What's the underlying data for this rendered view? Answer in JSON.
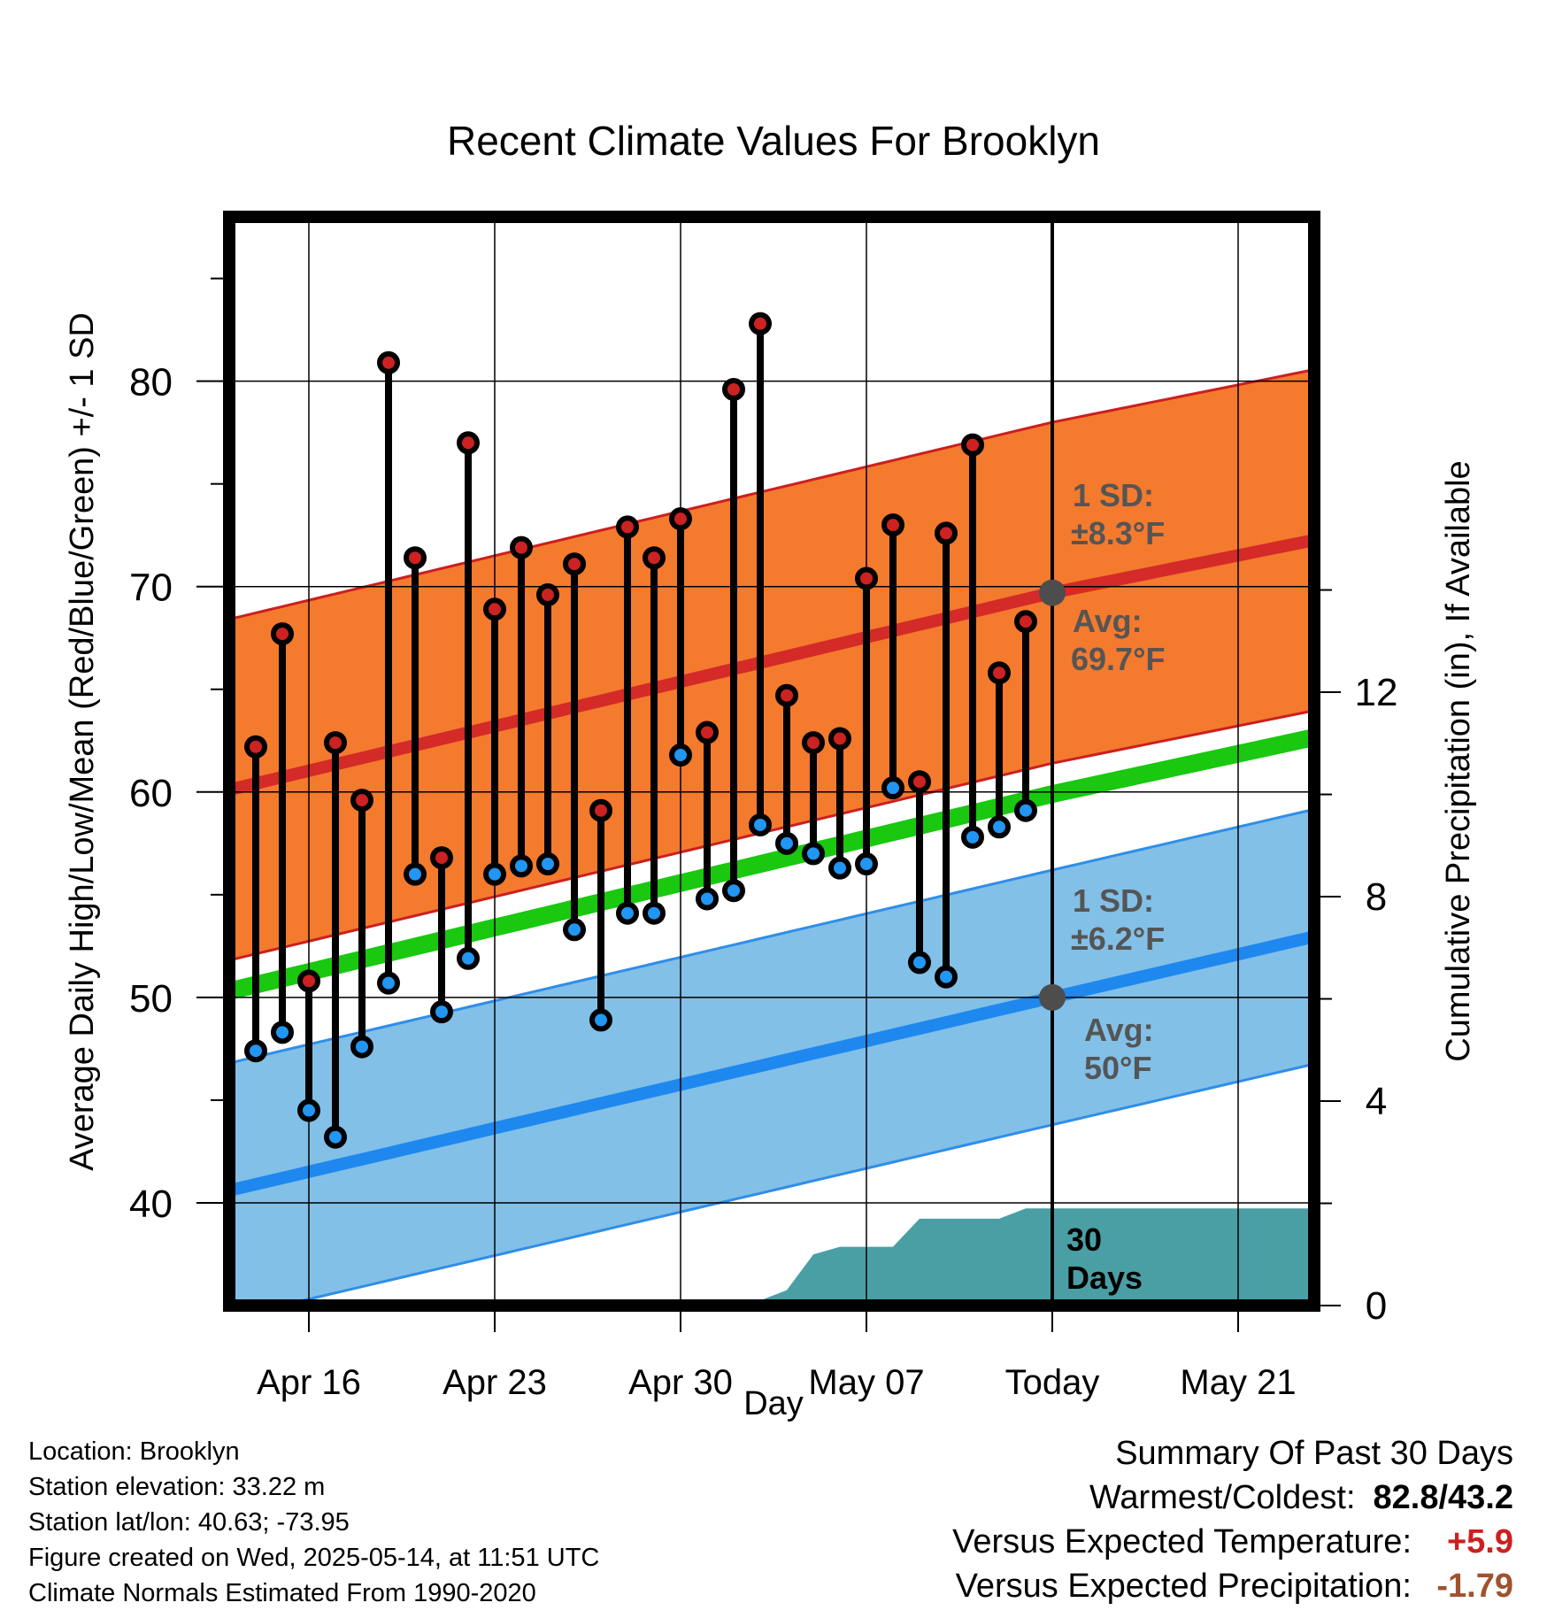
{
  "chart_data": {
    "type": "line",
    "title": "Recent Climate Values For Brooklyn",
    "xlabel": "Day",
    "ylabel": "Average Daily High/Low/Mean (Red/Blue/Green) +/- 1 SD",
    "y2label": "Cumulative Precipitation (in), If Available",
    "ylim": [
      35,
      88
    ],
    "y2lim": [
      0,
      21.3
    ],
    "y_ticks": [
      "40",
      "50",
      "60",
      "70",
      "80"
    ],
    "y2_ticks": [
      "0",
      "4",
      "8",
      "12"
    ],
    "x_range": [
      "2025-04-12",
      "2025-05-25"
    ],
    "x_ticks": [
      {
        "date": "2025-04-16",
        "label": "Apr 16"
      },
      {
        "date": "2025-04-23",
        "label": "Apr 23"
      },
      {
        "date": "2025-04-30",
        "label": "Apr 30"
      },
      {
        "date": "2025-05-07",
        "label": "May 07"
      },
      {
        "date": "2025-05-14",
        "label": "Today"
      },
      {
        "date": "2025-05-21",
        "label": "May 21"
      }
    ],
    "grid": true,
    "colors": {
      "high_band": "#f47a2e",
      "high_band_edge": "#cc1f1f",
      "high_avg": "#d42a28",
      "low_band": "#82c0e8",
      "low_band_edge": "#2f8ee8",
      "low_avg": "#1e88ee",
      "mean": "#19c80f",
      "precip": "#4a9fa5",
      "high_dot": "#cc2222",
      "low_dot": "#2196f3",
      "today_dot": "#4d4d4d",
      "annotation": "#555555",
      "plus": "#cc2020",
      "minus": "#a0522d"
    },
    "normals": {
      "dates": [
        "2025-04-12",
        "2025-05-14",
        "2025-05-24"
      ],
      "high_avg": [
        59.8,
        69.7,
        72.3
      ],
      "high_sd": 8.3,
      "low_avg": [
        40.3,
        50.0,
        53.0
      ],
      "low_sd": 6.2,
      "mean": [
        50.0,
        59.9,
        62.7
      ]
    },
    "series": [
      {
        "name": "High",
        "x": [
          "2025-04-14",
          "2025-04-15",
          "2025-04-16",
          "2025-04-17",
          "2025-04-18",
          "2025-04-19",
          "2025-04-20",
          "2025-04-21",
          "2025-04-22",
          "2025-04-23",
          "2025-04-24",
          "2025-04-25",
          "2025-04-26",
          "2025-04-27",
          "2025-04-28",
          "2025-04-29",
          "2025-04-30",
          "2025-05-01",
          "2025-05-02",
          "2025-05-03",
          "2025-05-04",
          "2025-05-05",
          "2025-05-06",
          "2025-05-07",
          "2025-05-08",
          "2025-05-09",
          "2025-05-10",
          "2025-05-11",
          "2025-05-12",
          "2025-05-13"
        ],
        "values": [
          62.2,
          67.7,
          50.8,
          62.4,
          59.6,
          80.9,
          71.4,
          56.8,
          77.0,
          68.9,
          71.9,
          69.6,
          71.1,
          59.1,
          72.9,
          71.4,
          73.3,
          62.9,
          79.6,
          82.8,
          64.7,
          62.4,
          62.6,
          70.4,
          73.0,
          60.5,
          72.6,
          76.9,
          65.8,
          68.3
        ]
      },
      {
        "name": "Low",
        "x": [
          "2025-04-14",
          "2025-04-15",
          "2025-04-16",
          "2025-04-17",
          "2025-04-18",
          "2025-04-19",
          "2025-04-20",
          "2025-04-21",
          "2025-04-22",
          "2025-04-23",
          "2025-04-24",
          "2025-04-25",
          "2025-04-26",
          "2025-04-27",
          "2025-04-28",
          "2025-04-29",
          "2025-04-30",
          "2025-05-01",
          "2025-05-02",
          "2025-05-03",
          "2025-05-04",
          "2025-05-05",
          "2025-05-06",
          "2025-05-07",
          "2025-05-08",
          "2025-05-09",
          "2025-05-10",
          "2025-05-11",
          "2025-05-12",
          "2025-05-13"
        ],
        "values": [
          47.4,
          48.3,
          44.5,
          43.2,
          47.6,
          50.7,
          56.0,
          49.3,
          51.9,
          56.0,
          56.4,
          56.5,
          53.3,
          48.9,
          54.1,
          54.1,
          61.8,
          54.8,
          55.2,
          58.4,
          57.5,
          57.0,
          56.3,
          56.5,
          60.2,
          51.7,
          51.0,
          57.8,
          58.3,
          59.1
        ]
      }
    ],
    "precip": {
      "dates": [
        "2025-04-12",
        "2025-04-24",
        "2025-04-25",
        "2025-04-26",
        "2025-04-27",
        "2025-04-28",
        "2025-04-29",
        "2025-04-30",
        "2025-05-01",
        "2025-05-02",
        "2025-05-03",
        "2025-05-04",
        "2025-05-05",
        "2025-05-06",
        "2025-05-07",
        "2025-05-08",
        "2025-05-09",
        "2025-05-10",
        "2025-05-11",
        "2025-05-12",
        "2025-05-13",
        "2025-05-24"
      ],
      "values": [
        0,
        0,
        0.05,
        0.1,
        0.1,
        0.1,
        0.1,
        0.1,
        0.1,
        0.1,
        0.1,
        0.3,
        1.0,
        1.15,
        1.15,
        1.15,
        1.7,
        1.7,
        1.7,
        1.7,
        1.9,
        1.9
      ]
    },
    "annotations": {
      "high_sd_label": "1 SD:",
      "high_sd_value": "±8.3°F",
      "high_avg_label": "Avg:",
      "high_avg_value": "69.7°F",
      "low_sd_label": "1 SD:",
      "low_sd_value": "±6.2°F",
      "low_avg_label": "Avg:",
      "low_avg_value": "50°F",
      "precip_label_1": "30",
      "precip_label_2": "Days"
    }
  },
  "footer": {
    "location": "Location: Brooklyn",
    "elevation": "Station elevation: 33.22 m",
    "latlon": "Station lat/lon: 40.63; -73.95",
    "created": "Figure created on Wed, 2025-05-14, at 11:51 UTC",
    "normals": "Climate Normals Estimated From 1990-2020"
  },
  "summary": {
    "title": "Summary Of Past 30 Days",
    "warm_label": "Warmest/Coldest:",
    "warm_value": "82.8/43.2",
    "temp_label": "Versus Expected Temperature:",
    "temp_value": "+5.9",
    "precip_label": "Versus Expected Precipitation:",
    "precip_value": "-1.79"
  }
}
